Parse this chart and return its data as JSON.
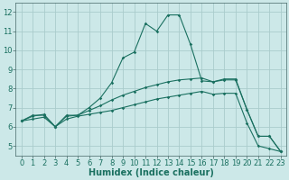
{
  "background_color": "#cce8e8",
  "grid_color": "#aacccc",
  "line_color": "#1a7060",
  "xlabel": "Humidex (Indice chaleur)",
  "xlabel_fontsize": 7,
  "tick_fontsize": 6,
  "xlim": [
    -0.5,
    23.5
  ],
  "ylim": [
    4.5,
    12.5
  ],
  "yticks": [
    5,
    6,
    7,
    8,
    9,
    10,
    11,
    12
  ],
  "xticks": [
    0,
    1,
    2,
    3,
    4,
    5,
    6,
    7,
    8,
    9,
    10,
    11,
    12,
    13,
    14,
    15,
    16,
    17,
    18,
    19,
    20,
    21,
    22,
    23
  ],
  "series1_x": [
    0,
    1,
    2,
    3,
    4,
    5,
    6,
    7,
    8,
    9,
    10,
    11,
    12,
    13,
    14,
    15,
    16,
    17,
    18,
    19,
    20,
    21,
    22,
    23
  ],
  "series1_y": [
    6.3,
    6.6,
    6.6,
    6.0,
    6.6,
    6.6,
    7.0,
    7.5,
    8.3,
    9.6,
    9.9,
    11.4,
    11.0,
    11.85,
    11.85,
    10.3,
    8.4,
    8.35,
    8.5,
    8.5,
    6.9,
    5.5,
    5.5,
    4.7
  ],
  "series2_x": [
    0,
    1,
    2,
    3,
    4,
    5,
    6,
    7,
    8,
    9,
    10,
    11,
    12,
    13,
    14,
    15,
    16,
    17,
    18,
    19,
    20,
    21,
    22,
    23
  ],
  "series2_y": [
    6.3,
    6.55,
    6.65,
    6.0,
    6.55,
    6.6,
    6.85,
    7.1,
    7.4,
    7.65,
    7.85,
    8.05,
    8.2,
    8.35,
    8.45,
    8.5,
    8.55,
    8.35,
    8.45,
    8.45,
    6.9,
    5.5,
    5.5,
    4.7
  ],
  "series3_x": [
    0,
    1,
    2,
    3,
    4,
    5,
    6,
    7,
    8,
    9,
    10,
    11,
    12,
    13,
    14,
    15,
    16,
    17,
    18,
    19,
    20,
    21,
    22,
    23
  ],
  "series3_y": [
    6.3,
    6.4,
    6.5,
    6.0,
    6.4,
    6.55,
    6.65,
    6.75,
    6.85,
    7.0,
    7.15,
    7.3,
    7.45,
    7.55,
    7.65,
    7.75,
    7.85,
    7.7,
    7.75,
    7.75,
    6.2,
    5.0,
    4.85,
    4.7
  ],
  "marker_size": 1.8,
  "line_width": 0.8
}
